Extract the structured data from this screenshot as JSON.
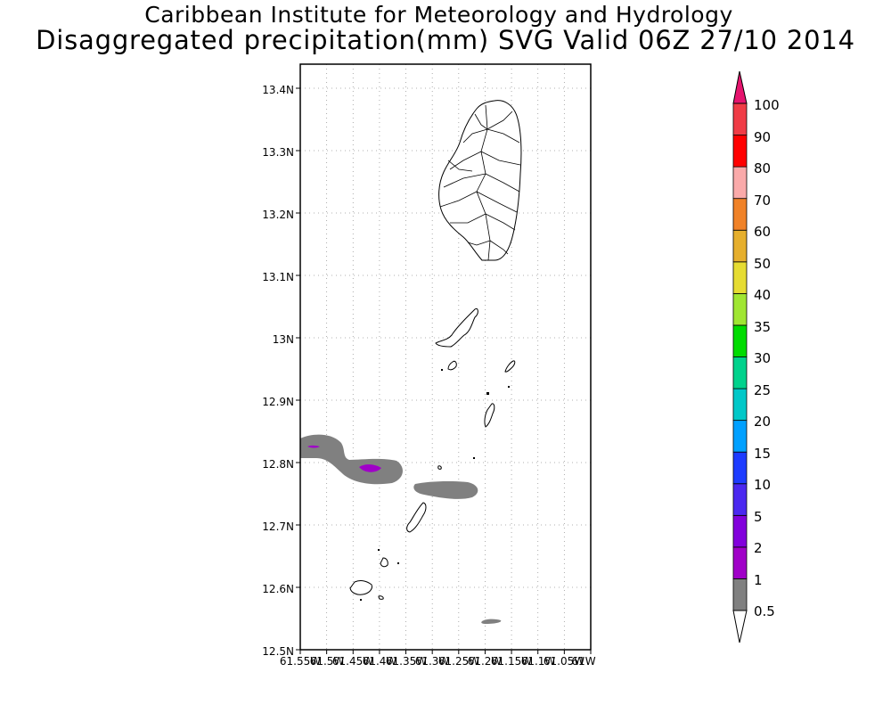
{
  "title": "Caribbean Institute for Meteorology and Hydrology",
  "subtitle": "Disaggregated precipitation(mm) SVG Valid 06Z 27/10 2014",
  "map": {
    "lat_labels": [
      "13.4N",
      "13.3N",
      "13.2N",
      "13.1N",
      "13N",
      "12.9N",
      "12.8N",
      "12.7N",
      "12.6N",
      "12.5N"
    ],
    "lon_labels": [
      "61.55W",
      "61.5W",
      "61.45W",
      "61.4W",
      "61.35W",
      "61.3W",
      "61.25W",
      "61.2W",
      "61.15W",
      "61.1W",
      "61.05W",
      "61W"
    ],
    "lat_range": [
      12.5,
      13.44
    ],
    "lon_range": [
      -61.55,
      -61.0
    ],
    "grid": true
  },
  "colorbar": {
    "labels": [
      "0.5",
      "1",
      "2",
      "5",
      "10",
      "15",
      "20",
      "25",
      "30",
      "35",
      "40",
      "50",
      "60",
      "70",
      "80",
      "90",
      "100"
    ],
    "colors": [
      "#808080",
      "#a000c8",
      "#8200dc",
      "#4b28f0",
      "#1e3cff",
      "#00a0ff",
      "#00c8c8",
      "#00d28c",
      "#00dc00",
      "#a0e632",
      "#e6dc32",
      "#e6af2d",
      "#f08228",
      "#faaaaa",
      "#ff0000",
      "#f03c46",
      "#e6146e"
    ]
  }
}
